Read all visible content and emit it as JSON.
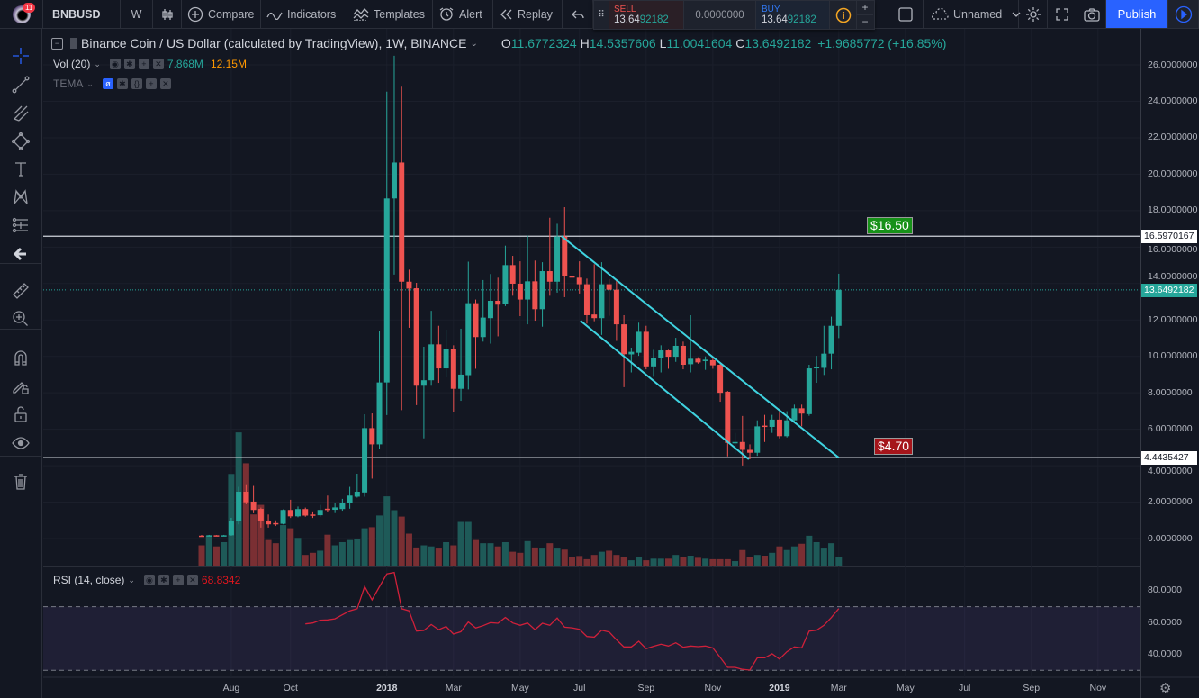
{
  "topbar": {
    "notification_count": "11",
    "symbol": "BNBUSD",
    "interval": "W",
    "compare": "Compare",
    "indicators": "Indicators",
    "templates": "Templates",
    "alert": "Alert",
    "replay": "Replay",
    "layout_name": "Unnamed",
    "publish": "Publish"
  },
  "trade_widget": {
    "sell_label": "SELL",
    "sell_price_main": "13.64",
    "sell_price_tail": "92182",
    "spread": "0.0000000",
    "buy_label": "BUY",
    "buy_price_main": "13.64",
    "buy_price_tail": "92182",
    "plus": "+",
    "minus": "−"
  },
  "legend": {
    "title": "Binance Coin / US Dollar (calculated by TradingView), 1W, BINANCE",
    "o_label": "O",
    "o": "11.6772324",
    "h_label": "H",
    "h": "14.5357606",
    "l_label": "L",
    "l": "11.0041604",
    "c_label": "C",
    "c": "13.6492182",
    "change": "+1.9685772 (+16.85%)",
    "vol_label": "Vol (20)",
    "vol_value": "7.868M",
    "vol_ma": "12.15M",
    "tema_label": "TEMA",
    "rsi_label": "RSI (14, close)",
    "rsi_value": "68.8342"
  },
  "price_axis": {
    "ticks": [
      "26.0000000",
      "24.0000000",
      "22.0000000",
      "20.0000000",
      "18.0000000",
      "16.0000000",
      "14.0000000",
      "12.0000000",
      "10.0000000",
      "8.0000000",
      "6.0000000",
      "4.0000000",
      "2.0000000",
      "0.0000000"
    ],
    "hline_upper": "16.5970167",
    "hline_lower": "4.4435427",
    "last_price": "13.6492182"
  },
  "rsi_axis": {
    "ticks": [
      "80.0000",
      "60.0000",
      "40.0000"
    ]
  },
  "time_axis": {
    "labels": [
      {
        "text": "Aug",
        "date": "2017-08-07",
        "bold": false
      },
      {
        "text": "Oct",
        "date": "2017-10-02",
        "bold": false
      },
      {
        "text": "2018",
        "date": "2018-01-01",
        "bold": true
      },
      {
        "text": "Mar",
        "date": "2018-03-05",
        "bold": false
      },
      {
        "text": "May",
        "date": "2018-05-07",
        "bold": false
      },
      {
        "text": "Jul",
        "date": "2018-07-02",
        "bold": false
      },
      {
        "text": "Sep",
        "date": "2018-09-03",
        "bold": false
      },
      {
        "text": "Nov",
        "date": "2018-11-05",
        "bold": false
      },
      {
        "text": "2019",
        "date": "2019-01-07",
        "bold": true
      },
      {
        "text": "Mar",
        "date": "2019-03-04",
        "bold": false
      },
      {
        "text": "May",
        "date": "2019-05-06",
        "bold": false
      },
      {
        "text": "Jul",
        "date": "2019-07-01",
        "bold": false
      },
      {
        "text": "Sep",
        "date": "2019-09-02",
        "bold": false
      },
      {
        "text": "Nov",
        "date": "2019-11-04",
        "bold": false
      }
    ]
  },
  "annotations": {
    "upper_label": "$16.50",
    "lower_label": "$4.70"
  },
  "colors": {
    "up": "#26a69a",
    "down": "#ef5350",
    "accent": "#2962ff",
    "rsi": "#d0203a",
    "trendline": "#3fd3e0",
    "vol_ma": "#ff9800"
  },
  "chart_data": {
    "type": "candlestick",
    "interval": "1W",
    "price_range": [
      0,
      26.5
    ],
    "horizontal_lines": [
      16.5970167,
      4.4435427
    ],
    "last_price": 13.6492182,
    "trendlines": [
      {
        "from": [
          "2018-06-15",
          16.6
        ],
        "to": [
          "2019-03-04",
          4.44
        ]
      },
      {
        "from": [
          "2018-07-03",
          11.96
        ],
        "to": [
          "2018-12-09",
          4.35
        ]
      }
    ],
    "columns": [
      "date",
      "open",
      "high",
      "low",
      "close",
      "volume_M"
    ],
    "candles": [
      [
        "2017-07-10",
        0.16,
        0.2,
        0.12,
        0.15,
        19
      ],
      [
        "2017-07-17",
        0.15,
        0.2,
        0.14,
        0.18,
        28
      ],
      [
        "2017-07-24",
        0.18,
        0.19,
        0.15,
        0.17,
        18
      ],
      [
        "2017-07-31",
        0.17,
        0.2,
        0.16,
        0.18,
        22
      ],
      [
        "2017-08-07",
        0.18,
        1.14,
        0.15,
        0.96,
        86
      ],
      [
        "2017-08-14",
        0.96,
        2.84,
        0.78,
        2.57,
        125
      ],
      [
        "2017-08-21",
        2.57,
        2.98,
        1.88,
        1.99,
        96
      ],
      [
        "2017-08-28",
        2.03,
        2.89,
        1.39,
        1.57,
        48
      ],
      [
        "2017-09-04",
        1.63,
        1.7,
        0.6,
        0.99,
        57
      ],
      [
        "2017-09-11",
        0.99,
        1.32,
        0.6,
        0.78,
        24
      ],
      [
        "2017-09-18",
        0.85,
        1.0,
        0.69,
        0.83,
        21
      ],
      [
        "2017-09-25",
        0.81,
        1.6,
        0.78,
        1.57,
        38
      ],
      [
        "2017-10-02",
        1.57,
        2.13,
        1.13,
        1.22,
        35
      ],
      [
        "2017-10-09",
        1.22,
        1.76,
        1.17,
        1.62,
        26
      ],
      [
        "2017-10-16",
        1.62,
        1.7,
        1.2,
        1.26,
        10
      ],
      [
        "2017-10-23",
        1.32,
        1.49,
        1.13,
        1.3,
        12
      ],
      [
        "2017-10-30",
        1.28,
        1.85,
        1.2,
        1.57,
        14
      ],
      [
        "2017-11-06",
        1.64,
        2.36,
        1.45,
        1.6,
        29
      ],
      [
        "2017-11-13",
        1.58,
        1.94,
        1.4,
        1.71,
        19
      ],
      [
        "2017-11-20",
        1.62,
        2.18,
        1.53,
        1.94,
        22
      ],
      [
        "2017-11-27",
        1.94,
        2.84,
        1.64,
        2.36,
        24
      ],
      [
        "2017-12-04",
        2.3,
        3.56,
        2.25,
        2.57,
        25
      ],
      [
        "2017-12-11",
        2.53,
        6.82,
        2.3,
        6.06,
        35
      ],
      [
        "2017-12-18",
        6.06,
        6.87,
        3.29,
        5.17,
        36
      ],
      [
        "2017-12-25",
        5.17,
        11.38,
        4.9,
        8.57,
        47
      ],
      [
        "2018-01-01",
        8.57,
        24.53,
        6.78,
        18.67,
        65
      ],
      [
        "2018-01-08",
        18.67,
        26.5,
        14.49,
        20.64,
        52
      ],
      [
        "2018-01-15",
        20.64,
        24.8,
        7.05,
        14.1,
        46
      ],
      [
        "2018-01-22",
        14.1,
        14.76,
        11.57,
        13.72,
        30
      ],
      [
        "2018-01-29",
        13.74,
        14.04,
        7.32,
        8.39,
        17
      ],
      [
        "2018-02-05",
        8.39,
        10.53,
        5.5,
        8.69,
        19
      ],
      [
        "2018-02-12",
        8.69,
        12.5,
        8.39,
        10.66,
        18
      ],
      [
        "2018-02-19",
        10.66,
        11.68,
        8.55,
        9.34,
        16
      ],
      [
        "2018-02-26",
        9.34,
        11.47,
        8.85,
        10.41,
        22
      ],
      [
        "2018-03-05",
        10.41,
        10.61,
        6.95,
        8.22,
        19
      ],
      [
        "2018-03-12",
        8.22,
        11.52,
        7.56,
        9.0,
        41
      ],
      [
        "2018-03-19",
        8.97,
        15.2,
        8.19,
        12.92,
        41
      ],
      [
        "2018-03-26",
        12.92,
        13.12,
        9.32,
        11.06,
        24
      ],
      [
        "2018-04-02",
        11.06,
        14.19,
        10.81,
        12.13,
        21
      ],
      [
        "2018-04-09",
        12.1,
        14.52,
        10.7,
        13.05,
        21
      ],
      [
        "2018-04-16",
        13.05,
        14.32,
        11.1,
        12.84,
        18
      ],
      [
        "2018-04-23",
        12.89,
        16.08,
        12.76,
        15.01,
        22
      ],
      [
        "2018-04-30",
        15.01,
        15.52,
        13.33,
        13.99,
        13
      ],
      [
        "2018-05-07",
        13.99,
        15.22,
        12.21,
        13.12,
        12
      ],
      [
        "2018-05-14",
        13.12,
        16.63,
        11.76,
        14.12,
        23
      ],
      [
        "2018-05-21",
        14.12,
        15.26,
        11.96,
        12.59,
        17
      ],
      [
        "2018-05-28",
        12.59,
        15.17,
        11.63,
        14.68,
        16
      ],
      [
        "2018-06-04",
        14.68,
        17.61,
        13.33,
        14.1,
        21
      ],
      [
        "2018-06-11",
        14.1,
        17.28,
        13.5,
        16.58,
        16
      ],
      [
        "2018-06-18",
        16.58,
        18.19,
        13.25,
        14.4,
        15
      ],
      [
        "2018-06-25",
        14.43,
        15.47,
        13.17,
        14.32,
        8
      ],
      [
        "2018-07-02",
        14.32,
        15.22,
        13.45,
        13.96,
        9
      ],
      [
        "2018-07-09",
        13.96,
        14.27,
        11.8,
        12.26,
        6
      ],
      [
        "2018-07-16",
        12.3,
        15.06,
        11.93,
        12.1,
        10
      ],
      [
        "2018-07-23",
        12.1,
        15.17,
        11.18,
        13.96,
        13
      ],
      [
        "2018-07-30",
        13.96,
        14.24,
        12.23,
        13.66,
        14
      ],
      [
        "2018-08-06",
        13.66,
        14.16,
        10.85,
        11.76,
        10
      ],
      [
        "2018-08-13",
        11.76,
        12.26,
        8.31,
        10.12,
        8
      ],
      [
        "2018-08-20",
        10.11,
        10.48,
        9.12,
        10.25,
        5
      ],
      [
        "2018-08-27",
        10.2,
        11.85,
        10.03,
        11.35,
        8
      ],
      [
        "2018-09-03",
        11.35,
        11.68,
        9.29,
        9.45,
        5
      ],
      [
        "2018-09-10",
        9.45,
        10.36,
        8.88,
        9.92,
        6.5
      ],
      [
        "2018-09-17",
        9.92,
        10.61,
        9.12,
        10.33,
        6.5
      ],
      [
        "2018-09-24",
        10.33,
        10.36,
        9.32,
        9.98,
        6.5
      ],
      [
        "2018-10-01",
        9.98,
        11.02,
        9.7,
        10.58,
        10
      ],
      [
        "2018-10-08",
        10.58,
        10.81,
        9.29,
        9.54,
        8
      ],
      [
        "2018-10-15",
        9.57,
        12.26,
        9.12,
        9.87,
        9.3
      ],
      [
        "2018-10-22",
        9.87,
        9.95,
        9.6,
        9.67,
        7.3
      ],
      [
        "2018-10-29",
        9.74,
        10.0,
        9.26,
        9.82,
        6.5
      ],
      [
        "2018-11-05",
        9.79,
        9.92,
        9.32,
        9.51,
        6
      ],
      [
        "2018-11-12",
        9.54,
        9.6,
        7.51,
        8.0,
        6
      ],
      [
        "2018-11-19",
        8.06,
        8.1,
        4.51,
        5.25,
        6
      ],
      [
        "2018-11-26",
        5.25,
        5.8,
        4.67,
        5.3,
        4.2
      ],
      [
        "2018-12-03",
        5.3,
        6.73,
        4.01,
        4.87,
        14.6
      ],
      [
        "2018-12-10",
        4.87,
        5.17,
        4.35,
        4.71,
        8
      ],
      [
        "2018-12-17",
        4.71,
        6.49,
        4.54,
        6.16,
        10
      ],
      [
        "2018-12-24",
        6.2,
        6.79,
        5.3,
        6.13,
        9.3
      ],
      [
        "2018-12-31",
        6.13,
        6.79,
        5.8,
        6.53,
        12
      ],
      [
        "2019-01-07",
        6.53,
        6.99,
        5.5,
        5.62,
        18
      ],
      [
        "2019-01-14",
        5.62,
        6.99,
        5.55,
        6.49,
        14.6
      ],
      [
        "2019-01-21",
        6.49,
        7.35,
        6.41,
        7.15,
        18
      ],
      [
        "2019-01-28",
        7.15,
        7.35,
        6.16,
        6.86,
        20.5
      ],
      [
        "2019-02-04",
        6.83,
        9.54,
        6.74,
        9.34,
        28
      ],
      [
        "2019-02-11",
        9.34,
        10.03,
        8.55,
        9.42,
        22
      ],
      [
        "2019-02-18",
        9.37,
        11.68,
        8.98,
        10.15,
        16
      ],
      [
        "2019-02-25",
        10.15,
        12.18,
        9.29,
        11.68,
        21
      ],
      [
        "2019-03-04",
        11.6772324,
        14.5357606,
        11.0041604,
        13.6492182,
        7.868
      ]
    ],
    "rsi": {
      "period": 14,
      "range": [
        25,
        95
      ],
      "bands": [
        70,
        30
      ],
      "values": [
        null,
        null,
        null,
        null,
        null,
        null,
        null,
        null,
        null,
        null,
        null,
        null,
        null,
        null,
        59.2,
        59.8,
        61.5,
        61.7,
        62.4,
        64.9,
        67.4,
        68.7,
        82.7,
        74.3,
        82.5,
        90.6,
        91.5,
        68.7,
        67.4,
        54.7,
        55.1,
        58.8,
        55.6,
        57.5,
        52.8,
        54.3,
        60.4,
        56.6,
        58.1,
        60.0,
        59.6,
        63.2,
        59.8,
        58.3,
        59.8,
        55.6,
        59.6,
        58.3,
        62.9,
        57.1,
        56.7,
        55.8,
        51.3,
        50.9,
        55.2,
        54.1,
        49.2,
        44.7,
        44.7,
        48.3,
        43.6,
        45.1,
        46.4,
        45.3,
        47.3,
        44.5,
        45.3,
        44.9,
        45.3,
        44.1,
        38.1,
        31.9,
        31.9,
        30.6,
        30.2,
        37.9,
        37.9,
        40.4,
        37.1,
        41.7,
        44.7,
        44.1,
        54.7,
        55.2,
        58.3,
        63.2,
        68.83
      ]
    }
  }
}
